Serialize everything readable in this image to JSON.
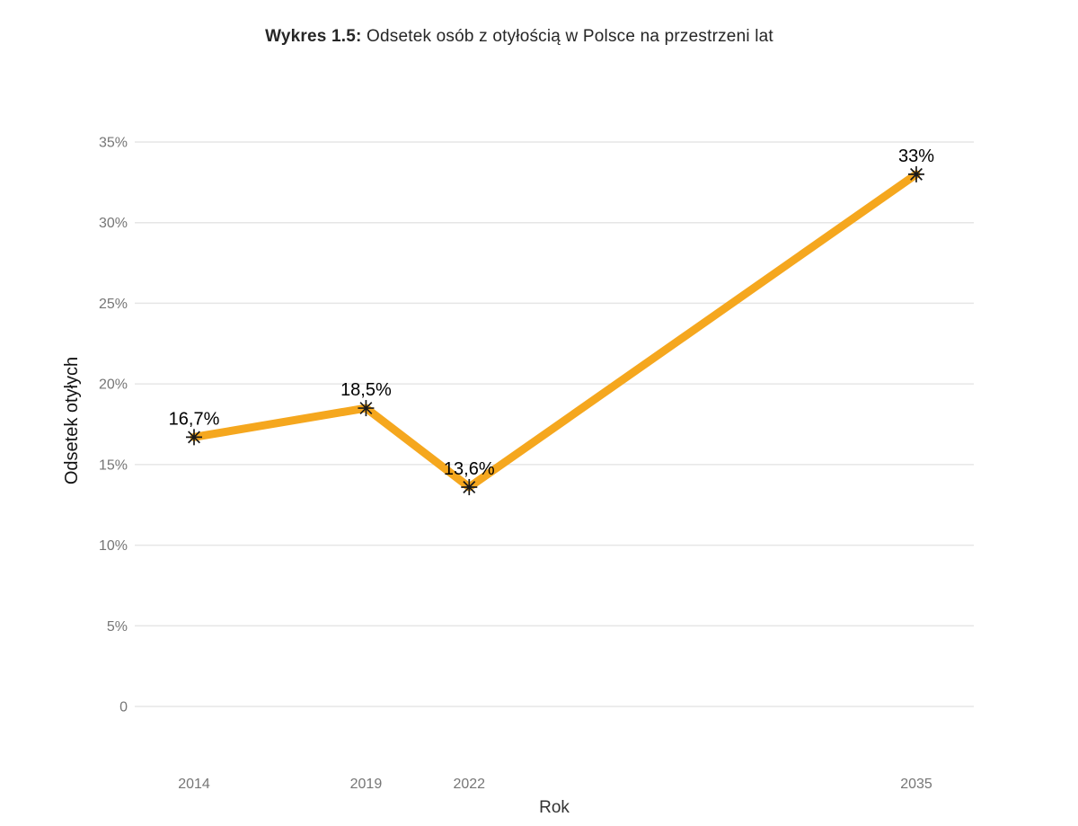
{
  "page": {
    "background": "#ffffff"
  },
  "chart_data": {
    "type": "line",
    "title": "Wykres 1.5: Odsetek osób z otyłością w Polsce na przestrzeni lat",
    "title_prefix": "Wykres 1.5:",
    "title_rest": " Odsetek osób z otyłością w Polsce na przestrzeni lat",
    "xlabel": "Rok",
    "ylabel": "Odsetek otyłych",
    "x": [
      2014,
      2019,
      2022,
      2035
    ],
    "x_tick_labels": [
      "2014",
      "2019",
      "2022",
      "2035"
    ],
    "series": [
      {
        "name": "Odsetek otyłych",
        "values": [
          16.7,
          18.5,
          13.6,
          33
        ],
        "point_labels": [
          "16,7%",
          "18,5%",
          "13,6%",
          "33%"
        ]
      }
    ],
    "y_ticks": [
      0,
      5,
      10,
      15,
      20,
      25,
      30,
      35
    ],
    "y_tick_labels": [
      "0",
      "5%",
      "10%",
      "15%",
      "20%",
      "25%",
      "30%",
      "35%"
    ],
    "ylim": [
      0,
      35
    ],
    "xlim": [
      2014,
      2035
    ],
    "grid": "horizontal-only",
    "legend": "none",
    "marker": "asterisk",
    "colors": {
      "line": "#F5A71E",
      "marker": "#1a1a1a",
      "grid": "#e6e6e6",
      "tick_label": "#767676",
      "axis_title": "#333333",
      "data_label": "#000000",
      "title": "#262626"
    }
  }
}
